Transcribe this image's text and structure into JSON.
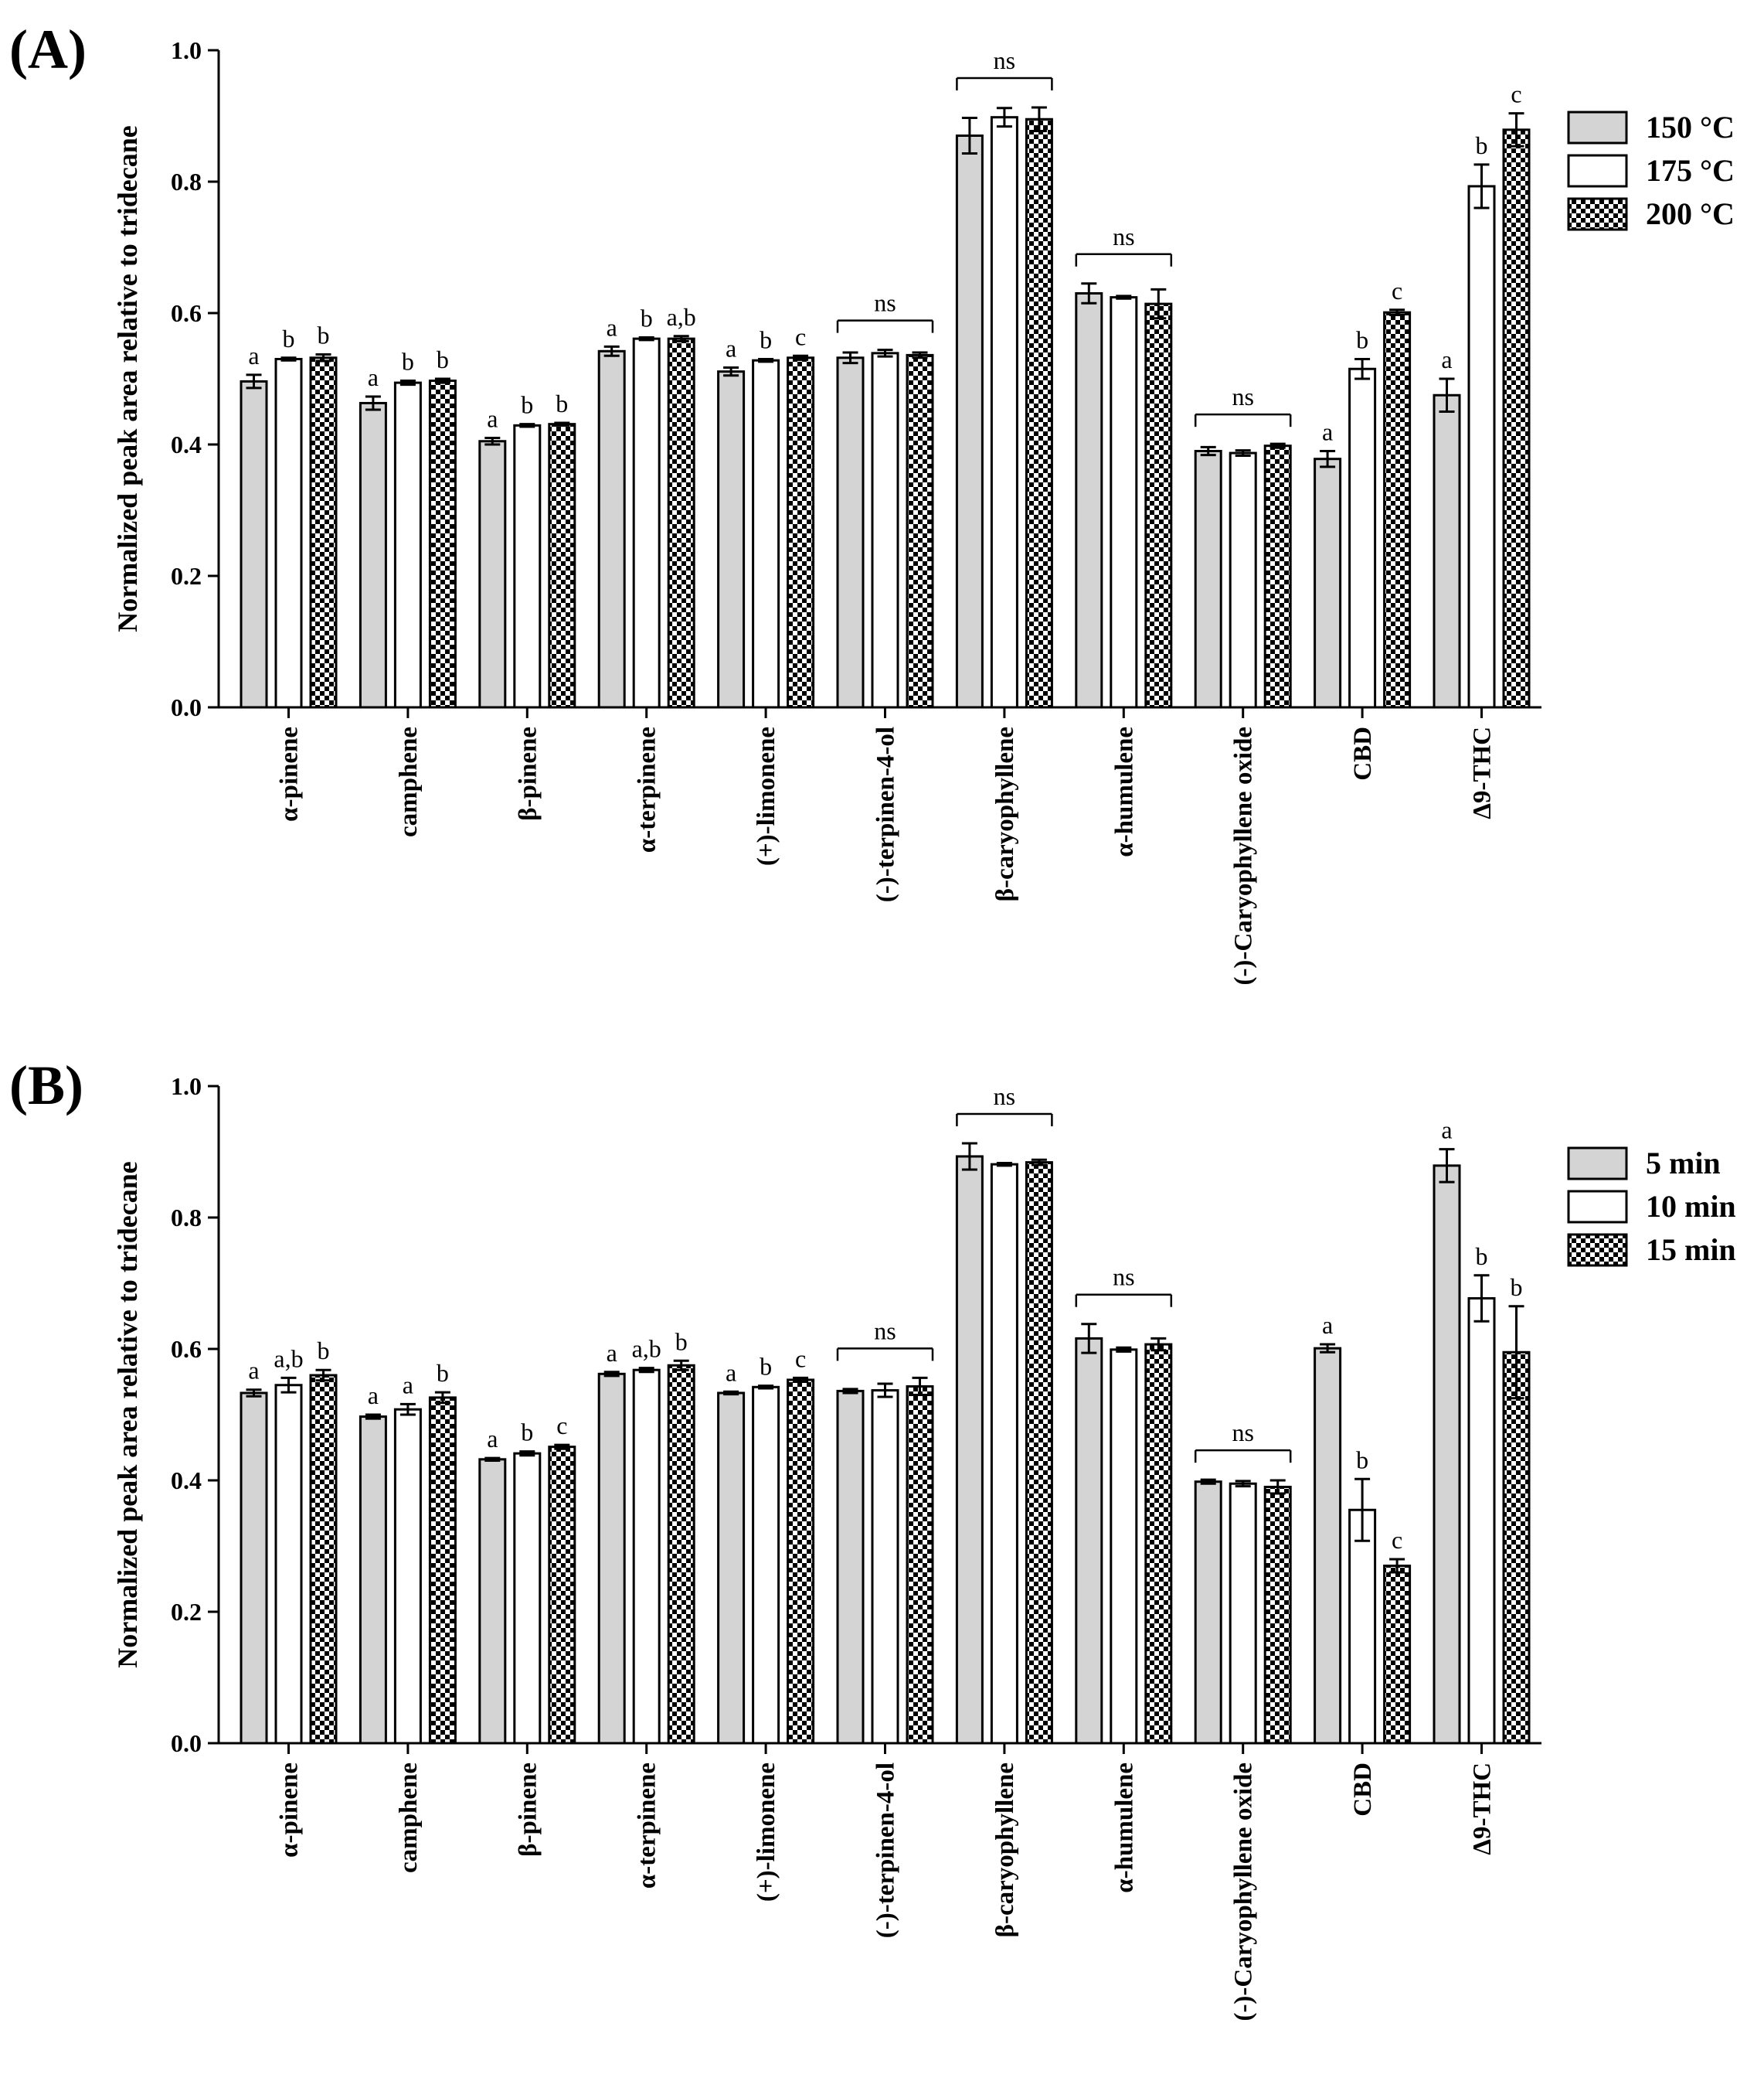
{
  "colors": {
    "series1": "#d4d4d4",
    "series2": "#ffffff",
    "series3_pattern": "checker",
    "stroke": "#000000"
  },
  "chart_data": [
    {
      "type": "bar",
      "panel_label": "(A)",
      "ylabel": "Normalized  peak area relative to tridecane",
      "xlabel": "",
      "ylim": [
        0,
        1.0
      ],
      "yticks": [
        "0.0",
        "0.2",
        "0.4",
        "0.6",
        "0.8",
        "1.0"
      ],
      "legend_position": "top-right",
      "categories": [
        "α-pinene",
        "camphene",
        "β-pinene",
        "α-terpinene",
        "(+)-limonene",
        "(-)-terpinen-4-ol",
        "β-caryophyllene",
        "α-humulene",
        "(-)-Caryophyllene oxide",
        "CBD",
        "Δ9-THC"
      ],
      "series": [
        {
          "name": "150 °C",
          "values": [
            0.496,
            0.463,
            0.405,
            0.542,
            0.511,
            0.532,
            0.87,
            0.63,
            0.39,
            0.378,
            0.475
          ],
          "errors": [
            0.01,
            0.01,
            0.005,
            0.007,
            0.006,
            0.008,
            0.027,
            0.015,
            0.006,
            0.012,
            0.025
          ]
        },
        {
          "name": "175 °C",
          "values": [
            0.53,
            0.494,
            0.429,
            0.561,
            0.528,
            0.539,
            0.898,
            0.624,
            0.387,
            0.515,
            0.793
          ],
          "errors": [
            0.002,
            0.003,
            0.002,
            0.002,
            0.002,
            0.005,
            0.014,
            0.002,
            0.004,
            0.015,
            0.033
          ]
        },
        {
          "name": "200 °C",
          "values": [
            0.532,
            0.497,
            0.431,
            0.561,
            0.532,
            0.536,
            0.895,
            0.614,
            0.398,
            0.601,
            0.879
          ],
          "errors": [
            0.005,
            0.003,
            0.002,
            0.004,
            0.003,
            0.004,
            0.018,
            0.022,
            0.003,
            0.004,
            0.025
          ]
        }
      ],
      "significance": [
        [
          "a",
          "b",
          "b"
        ],
        [
          "a",
          "b",
          "b"
        ],
        [
          "a",
          "b",
          "b"
        ],
        [
          "a",
          "b",
          "a,b"
        ],
        [
          "a",
          "b",
          "c"
        ],
        null,
        null,
        null,
        null,
        [
          "a",
          "b",
          "c"
        ],
        [
          "a",
          "b",
          "c"
        ]
      ],
      "ns_groups": [
        5,
        6,
        7,
        8
      ],
      "ns_label": "ns"
    },
    {
      "type": "bar",
      "panel_label": "(B)",
      "ylabel": "Normalized  peak area relative to tridecane",
      "xlabel": "",
      "ylim": [
        0,
        1.0
      ],
      "yticks": [
        "0.0",
        "0.2",
        "0.4",
        "0.6",
        "0.8",
        "1.0"
      ],
      "legend_position": "top-right",
      "categories": [
        "α-pinene",
        "camphene",
        "β-pinene",
        "α-terpinene",
        "(+)-limonene",
        "(-)-terpinen-4-ol",
        "β-caryophyllene",
        "α-humulene",
        "(-)-Caryophyllene oxide",
        "CBD",
        "Δ9-THC"
      ],
      "series": [
        {
          "name": "5 min",
          "values": [
            0.533,
            0.497,
            0.432,
            0.562,
            0.533,
            0.536,
            0.893,
            0.616,
            0.398,
            0.601,
            0.879
          ],
          "errors": [
            0.005,
            0.003,
            0.002,
            0.003,
            0.002,
            0.003,
            0.02,
            0.022,
            0.003,
            0.006,
            0.025
          ]
        },
        {
          "name": "10 min",
          "values": [
            0.545,
            0.508,
            0.441,
            0.568,
            0.542,
            0.537,
            0.881,
            0.599,
            0.395,
            0.355,
            0.677
          ],
          "errors": [
            0.011,
            0.008,
            0.003,
            0.003,
            0.002,
            0.01,
            0.002,
            0.003,
            0.004,
            0.047,
            0.035
          ]
        },
        {
          "name": "15 min",
          "values": [
            0.56,
            0.526,
            0.451,
            0.575,
            0.553,
            0.543,
            0.884,
            0.607,
            0.39,
            0.27,
            0.595
          ],
          "errors": [
            0.008,
            0.008,
            0.003,
            0.007,
            0.003,
            0.013,
            0.004,
            0.009,
            0.01,
            0.01,
            0.07
          ]
        }
      ],
      "significance": [
        [
          "a",
          "a,b",
          "b"
        ],
        [
          "a",
          "a",
          "b"
        ],
        [
          "a",
          "b",
          "c"
        ],
        [
          "a",
          "a,b",
          "b"
        ],
        [
          "a",
          "b",
          "c"
        ],
        null,
        null,
        null,
        null,
        [
          "a",
          "b",
          "c"
        ],
        [
          "a",
          "b",
          "b"
        ]
      ],
      "ns_groups": [
        5,
        6,
        7,
        8
      ],
      "ns_label": "ns"
    }
  ]
}
